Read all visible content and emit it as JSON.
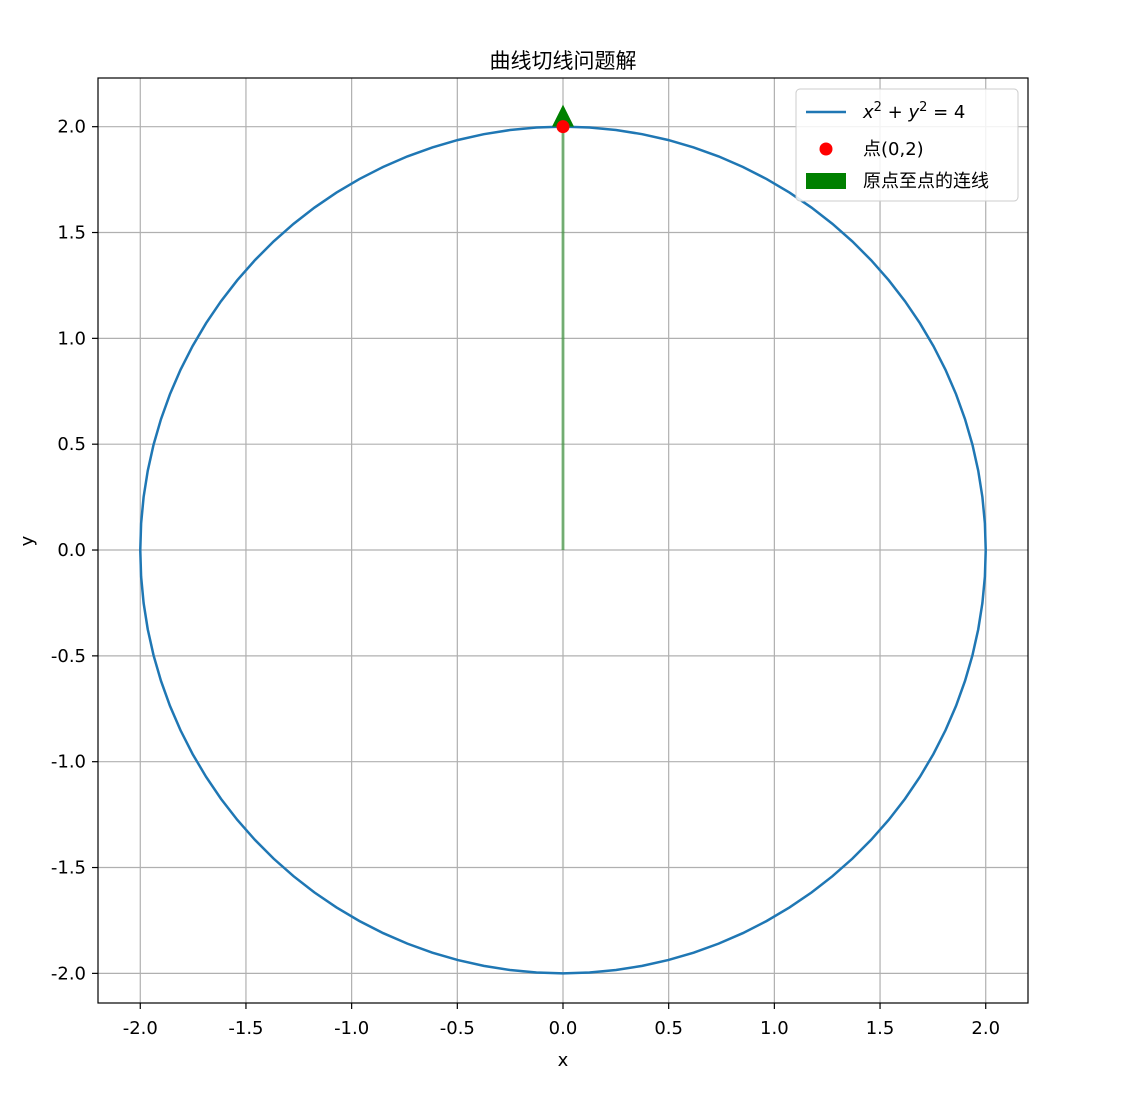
{
  "chart_data": {
    "type": "line",
    "title": "曲线切线问题解",
    "xlabel": "x",
    "ylabel": "y",
    "xlim": [
      -2.2,
      2.2
    ],
    "ylim": [
      -2.14,
      2.23
    ],
    "xticks": [
      -2.0,
      -1.5,
      -1.0,
      -0.5,
      0.0,
      0.5,
      1.0,
      1.5,
      2.0
    ],
    "yticks": [
      -2.0,
      -1.5,
      -1.0,
      -0.5,
      0.0,
      0.5,
      1.0,
      1.5,
      2.0
    ],
    "xtick_labels": [
      "-2.0",
      "-1.5",
      "-1.0",
      "-0.5",
      "0.0",
      "0.5",
      "1.0",
      "1.5",
      "2.0"
    ],
    "ytick_labels": [
      "-2.0",
      "-1.5",
      "-1.0",
      "-0.5",
      "0.0",
      "0.5",
      "1.0",
      "1.5",
      "2.0"
    ],
    "grid": true,
    "legend_position": "top-right",
    "series": [
      {
        "name": "x² + y² = 4",
        "legend_label": {
          "base1": "x",
          "sup1": "2",
          "mid": " + ",
          "base2": "y",
          "sup2": "2",
          "tail": " = 4"
        },
        "kind": "circle",
        "center": [
          0,
          0
        ],
        "radius": 2,
        "color": "#1f77b4"
      },
      {
        "name": "点(0,2)",
        "kind": "point",
        "x": 0,
        "y": 2,
        "color": "#ff0000"
      },
      {
        "name": "原点至点的连线",
        "kind": "arrow",
        "from": [
          0,
          0
        ],
        "to": [
          0,
          2
        ],
        "color": "#008000"
      }
    ]
  }
}
